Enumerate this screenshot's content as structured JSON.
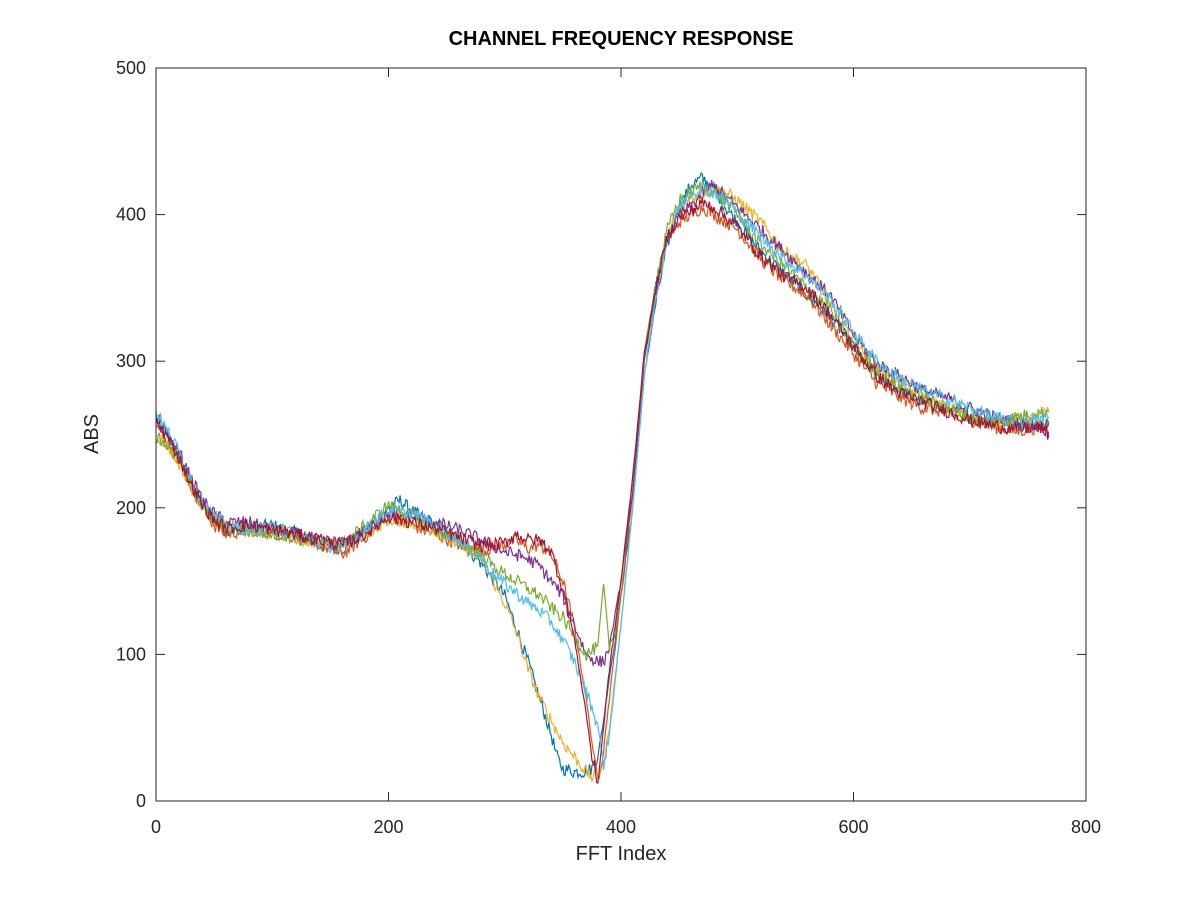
{
  "chart_data": {
    "type": "line",
    "title": "CHANNEL FREQUENCY RESPONSE",
    "xlabel": "FFT Index",
    "ylabel": "ABS",
    "xlim": [
      0,
      800
    ],
    "ylim": [
      0,
      500
    ],
    "xticks": [
      "0",
      "200",
      "400",
      "600",
      "800"
    ],
    "yticks": [
      "0",
      "100",
      "200",
      "300",
      "400",
      "500"
    ],
    "xtick_values": [
      0,
      200,
      400,
      600,
      800
    ],
    "ytick_values": [
      0,
      100,
      200,
      300,
      400,
      500
    ],
    "grid": false,
    "box": true,
    "series": [
      {
        "color": "#0072BD",
        "x": [
          0,
          10,
          20,
          30,
          40,
          50,
          60,
          80,
          100,
          120,
          140,
          160,
          180,
          200,
          210,
          220,
          240,
          260,
          280,
          300,
          310,
          320,
          330,
          340,
          345,
          350,
          360,
          370,
          375,
          380,
          385,
          390,
          395,
          400,
          410,
          420,
          430,
          440,
          450,
          460,
          470,
          480,
          490,
          500,
          520,
          540,
          560,
          580,
          600,
          620,
          640,
          660,
          680,
          700,
          720,
          740,
          760,
          768
        ],
        "y": [
          262,
          250,
          235,
          218,
          202,
          192,
          185,
          186,
          188,
          183,
          175,
          172,
          185,
          200,
          205,
          198,
          188,
          178,
          162,
          140,
          118,
          95,
          70,
          45,
          30,
          22,
          20,
          20,
          22,
          30,
          55,
          85,
          110,
          140,
          200,
          290,
          340,
          380,
          405,
          420,
          425,
          418,
          405,
          395,
          375,
          360,
          345,
          330,
          310,
          290,
          280,
          272,
          268,
          262,
          260,
          258,
          256,
          258
        ]
      },
      {
        "color": "#D95319",
        "x": [
          0,
          10,
          20,
          30,
          40,
          50,
          60,
          80,
          100,
          120,
          140,
          160,
          180,
          200,
          220,
          240,
          260,
          280,
          300,
          310,
          320,
          330,
          340,
          350,
          360,
          370,
          375,
          380,
          385,
          390,
          400,
          410,
          420,
          430,
          440,
          450,
          460,
          470,
          480,
          500,
          520,
          540,
          560,
          580,
          600,
          620,
          640,
          660,
          680,
          700,
          720,
          740,
          760,
          768
        ],
        "y": [
          255,
          245,
          232,
          215,
          200,
          188,
          182,
          185,
          183,
          180,
          175,
          168,
          180,
          195,
          188,
          182,
          175,
          170,
          175,
          178,
          172,
          175,
          168,
          150,
          118,
          70,
          40,
          15,
          35,
          70,
          140,
          210,
          300,
          350,
          385,
          395,
          400,
          405,
          400,
          390,
          370,
          355,
          345,
          325,
          305,
          285,
          275,
          268,
          265,
          260,
          255,
          252,
          255,
          258
        ]
      },
      {
        "color": "#EDB120",
        "x": [
          0,
          10,
          20,
          30,
          40,
          50,
          60,
          80,
          100,
          120,
          140,
          160,
          180,
          200,
          220,
          240,
          260,
          280,
          290,
          300,
          310,
          320,
          330,
          340,
          350,
          360,
          370,
          375,
          380,
          385,
          390,
          400,
          410,
          420,
          430,
          440,
          450,
          460,
          470,
          480,
          490,
          500,
          520,
          540,
          560,
          580,
          600,
          620,
          640,
          660,
          680,
          700,
          720,
          740,
          760,
          768
        ],
        "y": [
          250,
          242,
          230,
          214,
          202,
          192,
          188,
          184,
          186,
          180,
          176,
          174,
          182,
          192,
          190,
          185,
          175,
          165,
          150,
          135,
          115,
          90,
          70,
          55,
          40,
          30,
          20,
          16,
          18,
          25,
          50,
          120,
          200,
          290,
          345,
          385,
          405,
          410,
          415,
          418,
          415,
          410,
          395,
          375,
          365,
          340,
          315,
          295,
          285,
          275,
          268,
          262,
          258,
          260,
          262,
          265
        ]
      },
      {
        "color": "#7E2F8E",
        "x": [
          0,
          10,
          20,
          30,
          40,
          50,
          60,
          80,
          100,
          120,
          140,
          160,
          180,
          200,
          220,
          240,
          260,
          280,
          300,
          310,
          320,
          330,
          340,
          350,
          360,
          370,
          380,
          385,
          390,
          400,
          410,
          420,
          430,
          440,
          450,
          460,
          470,
          480,
          490,
          500,
          520,
          540,
          560,
          580,
          600,
          620,
          640,
          660,
          680,
          700,
          720,
          740,
          760,
          768
        ],
        "y": [
          258,
          248,
          238,
          220,
          205,
          196,
          190,
          190,
          185,
          182,
          178,
          176,
          184,
          196,
          194,
          190,
          185,
          178,
          170,
          168,
          165,
          160,
          150,
          140,
          120,
          100,
          95,
          95,
          105,
          150,
          210,
          300,
          350,
          385,
          400,
          405,
          415,
          420,
          412,
          405,
          390,
          375,
          360,
          345,
          318,
          298,
          290,
          280,
          275,
          268,
          262,
          258,
          256,
          252
        ]
      },
      {
        "color": "#77AC30",
        "x": [
          0,
          10,
          20,
          30,
          40,
          50,
          60,
          80,
          100,
          120,
          140,
          160,
          180,
          200,
          220,
          240,
          260,
          280,
          290,
          300,
          310,
          320,
          330,
          340,
          350,
          360,
          370,
          380,
          385,
          390,
          395,
          400,
          410,
          420,
          430,
          440,
          450,
          460,
          470,
          480,
          490,
          500,
          520,
          540,
          560,
          580,
          600,
          620,
          640,
          660,
          680,
          700,
          720,
          740,
          760,
          768
        ],
        "y": [
          248,
          242,
          232,
          216,
          200,
          190,
          186,
          184,
          182,
          180,
          177,
          175,
          188,
          202,
          195,
          185,
          178,
          168,
          160,
          155,
          150,
          145,
          140,
          132,
          125,
          112,
          100,
          105,
          148,
          105,
          115,
          150,
          220,
          305,
          355,
          390,
          410,
          415,
          420,
          415,
          408,
          400,
          380,
          365,
          350,
          335,
          310,
          292,
          282,
          275,
          268,
          262,
          258,
          262,
          265,
          266
        ]
      },
      {
        "color": "#4DBEEE",
        "x": [
          0,
          10,
          20,
          30,
          40,
          50,
          60,
          80,
          100,
          120,
          140,
          160,
          180,
          200,
          220,
          240,
          260,
          280,
          290,
          300,
          310,
          320,
          330,
          340,
          350,
          360,
          370,
          380,
          385,
          390,
          400,
          410,
          420,
          430,
          440,
          450,
          460,
          470,
          480,
          490,
          500,
          520,
          540,
          560,
          580,
          600,
          620,
          640,
          660,
          680,
          700,
          720,
          740,
          760,
          768
        ],
        "y": [
          266,
          252,
          238,
          220,
          205,
          194,
          188,
          185,
          186,
          182,
          176,
          172,
          185,
          198,
          196,
          188,
          178,
          166,
          155,
          148,
          142,
          135,
          130,
          122,
          110,
          95,
          75,
          52,
          25,
          45,
          120,
          200,
          290,
          345,
          385,
          405,
          415,
          418,
          415,
          410,
          402,
          385,
          370,
          358,
          342,
          320,
          300,
          288,
          280,
          274,
          268,
          262,
          258,
          260,
          262
        ]
      },
      {
        "color": "#A2142F",
        "x": [
          0,
          10,
          20,
          30,
          40,
          50,
          60,
          80,
          100,
          120,
          140,
          160,
          180,
          200,
          220,
          240,
          260,
          280,
          300,
          310,
          320,
          330,
          340,
          350,
          360,
          370,
          375,
          380,
          385,
          390,
          400,
          410,
          420,
          430,
          440,
          450,
          460,
          470,
          480,
          500,
          520,
          540,
          560,
          580,
          600,
          620,
          640,
          660,
          680,
          700,
          720,
          740,
          760,
          768
        ],
        "y": [
          260,
          248,
          234,
          216,
          202,
          192,
          186,
          188,
          185,
          182,
          178,
          174,
          182,
          194,
          190,
          186,
          180,
          174,
          176,
          182,
          178,
          178,
          170,
          145,
          110,
          60,
          30,
          12,
          50,
          90,
          150,
          220,
          305,
          350,
          385,
          398,
          402,
          408,
          405,
          392,
          372,
          358,
          350,
          332,
          310,
          290,
          278,
          272,
          266,
          260,
          256,
          254,
          255,
          250
        ]
      }
    ]
  }
}
